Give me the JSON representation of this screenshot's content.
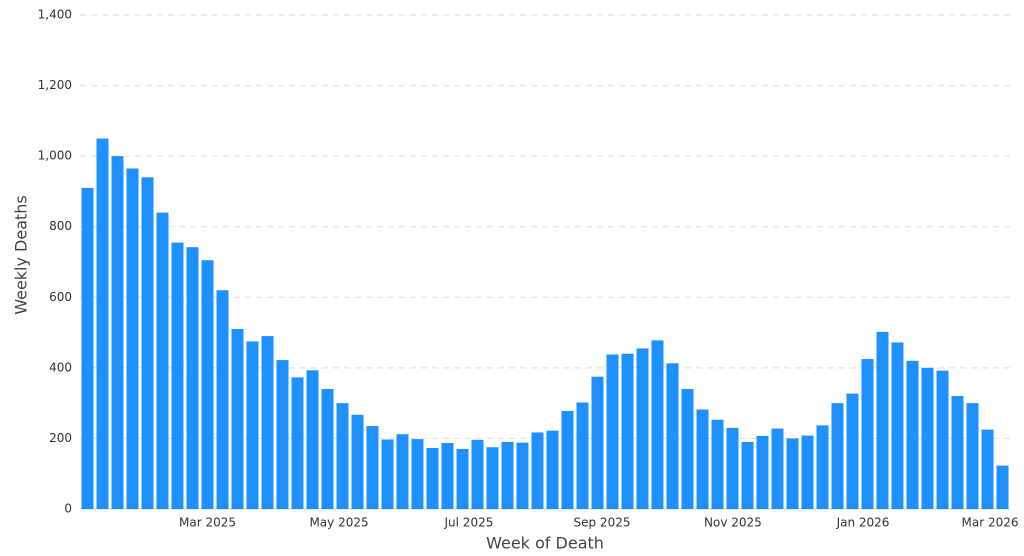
{
  "chart_data": {
    "type": "bar",
    "xlabel": "Week of Death",
    "ylabel": "Weekly Deaths",
    "categories": [
      null,
      null,
      null,
      null,
      null,
      null,
      null,
      null,
      null,
      null,
      null,
      null,
      null,
      null,
      null,
      null,
      null,
      null,
      null,
      null,
      null,
      null,
      null,
      null,
      null,
      null,
      null,
      null,
      null,
      null,
      null,
      null,
      null,
      null,
      null,
      null,
      null,
      null,
      null,
      null,
      null,
      null,
      null,
      null,
      null,
      null,
      null,
      null,
      null,
      null,
      null,
      null,
      null,
      null,
      null,
      null,
      null,
      null,
      null,
      null,
      null,
      null
    ],
    "values": [
      910,
      1050,
      1000,
      965,
      940,
      840,
      755,
      742,
      705,
      620,
      510,
      475,
      490,
      422,
      373,
      393,
      340,
      300,
      267,
      235,
      197,
      212,
      198,
      173,
      187,
      170,
      196,
      175,
      190,
      188,
      217,
      222,
      278,
      302,
      375,
      438,
      440,
      455,
      478,
      413,
      340,
      282,
      253,
      230,
      190,
      207,
      228,
      200,
      208,
      237,
      300,
      327,
      425,
      502,
      472,
      420,
      400,
      392,
      320,
      300,
      225,
      123
    ],
    "color": "#1e90ff",
    "xticks": [
      {
        "value": 8,
        "label": "Mar 2025"
      },
      {
        "value": 16.77,
        "label": "May 2025"
      },
      {
        "value": 25.43,
        "label": "Jul 2025"
      },
      {
        "value": 34.3,
        "label": "Sep 2025"
      },
      {
        "value": 43.03,
        "label": "Nov 2025"
      },
      {
        "value": 51.7,
        "label": "Jan 2026"
      },
      {
        "value": 60.17,
        "label": "Mar 2026"
      }
    ],
    "ylim": [
      0,
      1400
    ],
    "yticks": [
      0,
      200,
      400,
      600,
      800,
      {
        "value": 1000,
        "label": "1,000"
      },
      {
        "value": 1200,
        "label": "1,200"
      },
      {
        "value": 1400,
        "label": "1,400"
      }
    ],
    "grid": true
  }
}
